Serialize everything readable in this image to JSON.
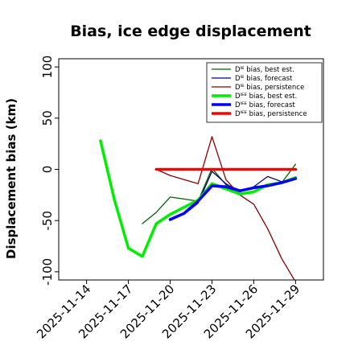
{
  "chart_data": {
    "type": "line",
    "title": "Bias, ice edge displacement",
    "xlabel": "",
    "ylabel": "Displacement bias (km)",
    "xlim": [
      "2025-11-12",
      "2025-12-01"
    ],
    "ylim": [
      -108,
      108
    ],
    "yticks": [
      -100,
      -50,
      0,
      50,
      100
    ],
    "xticks": [
      {
        "date": "2025-11-14",
        "label": "2025-11-14",
        "color": "#000000"
      },
      {
        "date": "2025-11-17",
        "label": "2025-11-17",
        "color": "#000000"
      },
      {
        "date": "2025-11-20",
        "label": "2025-11-20",
        "color": "#228b22"
      },
      {
        "date": "2025-11-23",
        "label": "2025-11-23",
        "color": "#000000"
      },
      {
        "date": "2025-11-26",
        "label": "2025-11-26",
        "color": "#000000"
      },
      {
        "date": "2025-11-29",
        "label": "2025-11-29",
        "color": "#000000"
      }
    ],
    "legend_position": "top-right",
    "series": [
      {
        "name": "Dᴵᴱ bias, best est.",
        "color": "#006400",
        "width": 1.3,
        "x": [
          "2025-11-18",
          "2025-11-19",
          "2025-11-20",
          "2025-11-21",
          "2025-11-22",
          "2025-11-23",
          "2025-11-24",
          "2025-11-25",
          "2025-11-26",
          "2025-11-27",
          "2025-11-28",
          "2025-11-29"
        ],
        "y": [
          -53,
          -42,
          -27,
          -29,
          -31,
          1,
          -15,
          -20,
          -18,
          -15,
          -13,
          5
        ]
      },
      {
        "name": "Dᴵᴱ bias, forecast",
        "color": "#00008b",
        "width": 1.3,
        "x": [
          "2025-11-20",
          "2025-11-21",
          "2025-11-22",
          "2025-11-23",
          "2025-11-24",
          "2025-11-25",
          "2025-11-26",
          "2025-11-27",
          "2025-11-28",
          "2025-11-29"
        ],
        "y": [
          -48,
          -44,
          -33,
          -2,
          -14,
          -22,
          -17,
          -7,
          -12,
          -8
        ]
      },
      {
        "name": "Dᴵᴱ bias, persistence",
        "color": "#8b0000",
        "width": 1.3,
        "x": [
          "2025-11-19",
          "2025-11-20",
          "2025-11-21",
          "2025-11-22",
          "2025-11-23",
          "2025-11-24",
          "2025-11-25",
          "2025-11-26",
          "2025-11-27",
          "2025-11-28",
          "2025-11-29"
        ],
        "y": [
          0,
          -6,
          -10,
          -14,
          32,
          -10,
          -25,
          -34,
          -58,
          -87,
          -110
        ]
      },
      {
        "name": "Dᴵᴱᴱ bias, best est.",
        "color": "#00ee00",
        "width": 3.5,
        "x": [
          "2025-11-15",
          "2025-11-16",
          "2025-11-17",
          "2025-11-18",
          "2025-11-19",
          "2025-11-20",
          "2025-11-21",
          "2025-11-22",
          "2025-11-23",
          "2025-11-24",
          "2025-11-25",
          "2025-11-26",
          "2025-11-27",
          "2025-11-28",
          "2025-11-29"
        ],
        "y": [
          28,
          -30,
          -77,
          -85,
          -53,
          -44,
          -37,
          -30,
          -14,
          -19,
          -24,
          -22,
          -15,
          -13,
          -8
        ]
      },
      {
        "name": "Dᴵᴱᴱ bias, forecast",
        "color": "#0000ff",
        "width": 3.5,
        "x": [
          "2025-11-20",
          "2025-11-21",
          "2025-11-22",
          "2025-11-23",
          "2025-11-24",
          "2025-11-25",
          "2025-11-26",
          "2025-11-27",
          "2025-11-28",
          "2025-11-29"
        ],
        "y": [
          -49,
          -43,
          -31,
          -16,
          -17,
          -21,
          -18,
          -16,
          -13,
          -9
        ]
      },
      {
        "name": "Dᴵᴱᴱ bias, persistence",
        "color": "#ff0000",
        "width": 3.5,
        "x": [
          "2025-11-19",
          "2025-11-20",
          "2025-11-21",
          "2025-11-22",
          "2025-11-23",
          "2025-11-24",
          "2025-11-25",
          "2025-11-26",
          "2025-11-27",
          "2025-11-28",
          "2025-11-29"
        ],
        "y": [
          0,
          0,
          0,
          0,
          0,
          0,
          0,
          0,
          0,
          0,
          0
        ]
      }
    ]
  }
}
